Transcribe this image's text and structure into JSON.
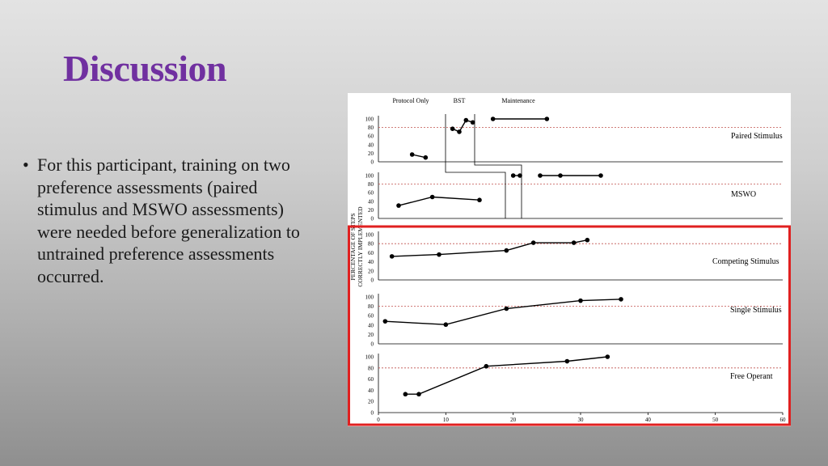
{
  "slide": {
    "title": "Discussion",
    "bullet_marker": "•",
    "bullets": [
      "For this participant, training on two preference assessments (paired stimulus and MSWO assessments) were needed before generalization to untrained preference assessments occurred."
    ]
  },
  "colors": {
    "title": "#7030a0",
    "highlight_box": "#e02020",
    "mastery_line": "#c0504d",
    "series": "#000000"
  },
  "chart_data": {
    "type": "line",
    "ylabel": "PERCENTAGE OF STEPS CORRECTLY IMPLEMENTED",
    "phases": [
      "Protocol Only",
      "BST",
      "Maintenance"
    ],
    "xlim": [
      0,
      60
    ],
    "xticks": [
      0,
      10,
      20,
      30,
      40,
      50,
      60
    ],
    "ylim": [
      0,
      100
    ],
    "yticks": [
      0,
      20,
      40,
      60,
      80,
      100
    ],
    "mastery_criterion": 80,
    "highlight": "red box around Competing Stimulus, Single Stimulus and Free Operant panels",
    "panels": [
      {
        "name": "Paired Stimulus",
        "segments": [
          {
            "x": [
              5,
              7
            ],
            "y": [
              17,
              10
            ]
          },
          {
            "x": [
              11,
              12,
              13,
              14
            ],
            "y": [
              77,
              70,
              97,
              92
            ]
          },
          {
            "x": [
              17,
              25
            ],
            "y": [
              100,
              100
            ]
          }
        ]
      },
      {
        "name": "MSWO",
        "segments": [
          {
            "x": [
              3,
              8,
              15
            ],
            "y": [
              30,
              50,
              43
            ]
          },
          {
            "x": [
              20,
              21
            ],
            "y": [
              100,
              100
            ]
          },
          {
            "x": [
              24,
              27,
              33
            ],
            "y": [
              100,
              100,
              100
            ]
          }
        ]
      },
      {
        "name": "Competing Stimulus",
        "segments": [
          {
            "x": [
              2,
              9,
              19,
              23,
              29,
              31
            ],
            "y": [
              52,
              56,
              65,
              82,
              82,
              88
            ]
          }
        ]
      },
      {
        "name": "Single Stimulus",
        "segments": [
          {
            "x": [
              1,
              10,
              19,
              30,
              36
            ],
            "y": [
              48,
              41,
              75,
              92,
              95
            ]
          }
        ]
      },
      {
        "name": "Free Operant",
        "segments": [
          {
            "x": [
              4,
              6,
              16,
              28,
              34
            ],
            "y": [
              33,
              33,
              83,
              92,
              100
            ]
          }
        ]
      }
    ]
  }
}
